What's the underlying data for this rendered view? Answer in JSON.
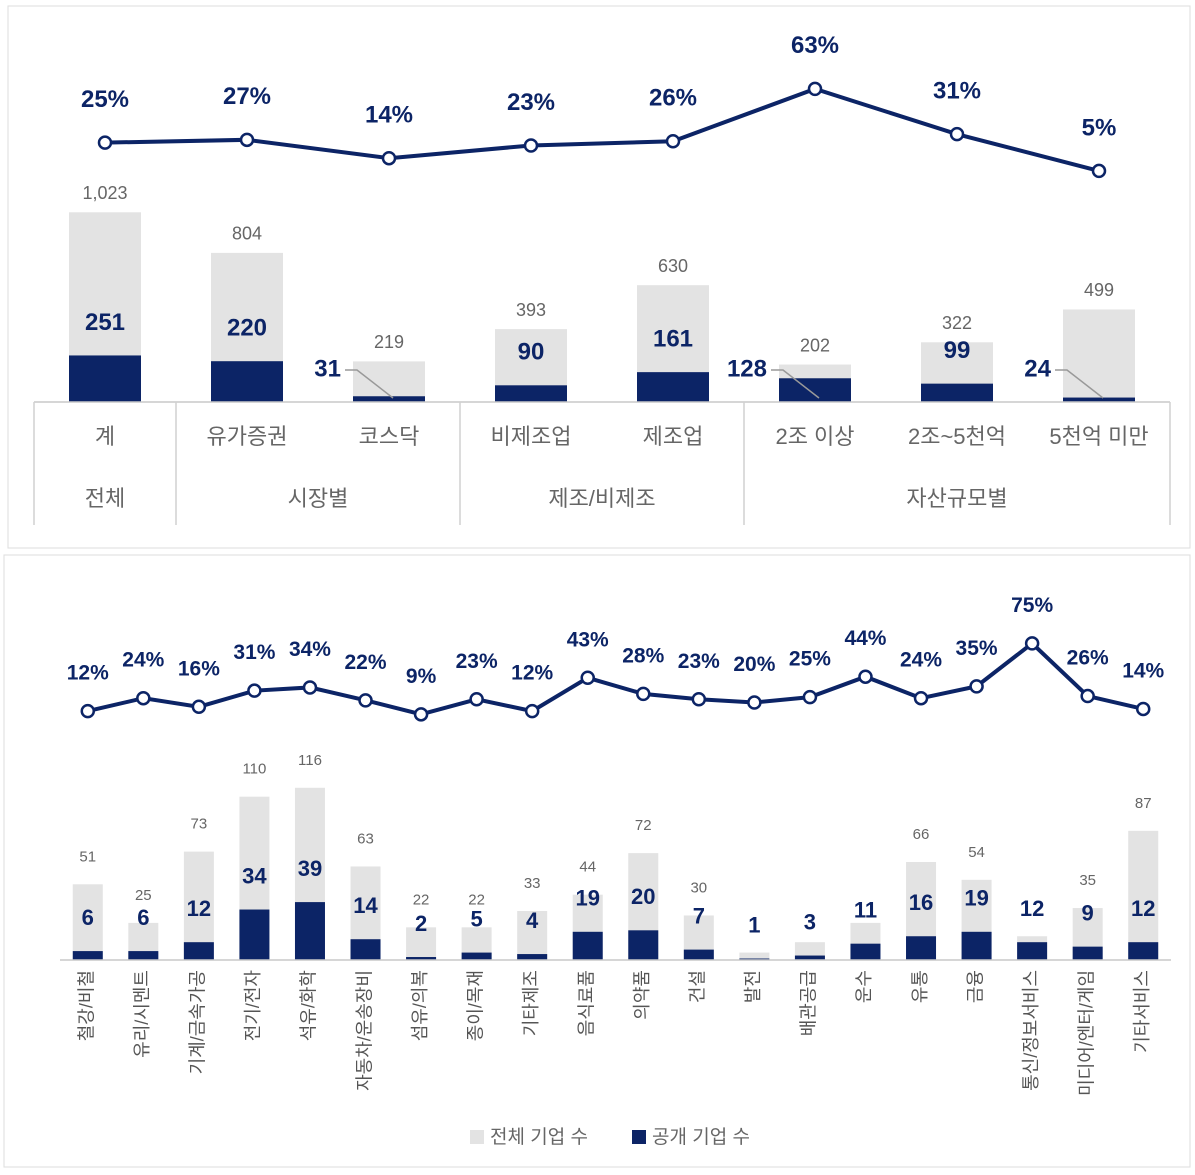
{
  "chart_data": [
    {
      "type": "bar",
      "categories": [
        "계",
        "유가증권",
        "코스닥",
        "비제조업",
        "제조업",
        "2조 이상",
        "2조~5천억",
        "5천억 미만"
      ],
      "groups": [
        {
          "label": "전체",
          "categories": [
            "계"
          ]
        },
        {
          "label": "시장별",
          "categories": [
            "유가증권",
            "코스닥"
          ]
        },
        {
          "label": "제조/비제조",
          "categories": [
            "비제조업",
            "제조업"
          ]
        },
        {
          "label": "자산규모별",
          "categories": [
            "2조 이상",
            "2조~5천억",
            "5천억 미만"
          ]
        }
      ],
      "ylim": [
        0,
        1100
      ],
      "y2lim": [
        0,
        70
      ],
      "series": [
        {
          "color": "#e3e3e3",
          "values": [
            1023,
            804,
            219,
            393,
            630,
            202,
            322,
            499
          ],
          "value_labels": [
            "1,023",
            "804",
            "219",
            "393",
            "630",
            "202",
            "322",
            "499"
          ]
        },
        {
          "color": "#0c2466",
          "values": [
            251,
            220,
            31,
            90,
            161,
            128,
            99,
            24
          ]
        },
        {
          "type": "line",
          "axis": "y2",
          "color": "#0c2466",
          "values": [
            25,
            27,
            14,
            23,
            26,
            63,
            31,
            5
          ],
          "value_labels": [
            "25%",
            "27%",
            "14%",
            "23%",
            "26%",
            "63%",
            "31%",
            "5%"
          ]
        }
      ]
    },
    {
      "type": "bar",
      "categories": [
        "철강/비철",
        "유리/시멘트",
        "기계/금속가공",
        "전기/전자",
        "석유/화학",
        "자동차/운송장비",
        "섬유/의복",
        "종이/목재",
        "기타제조",
        "음식료품",
        "의약품",
        "건설",
        "발전",
        "배관공급",
        "운수",
        "유통",
        "금융",
        "통신/정보서비스",
        "미디어/엔터/게임",
        "기타서비스"
      ],
      "ylim": [
        0,
        130
      ],
      "y2lim": [
        0,
        80
      ],
      "series": [
        {
          "name": "전체 기업 수",
          "color": "#e3e3e3",
          "values": [
            51,
            25,
            73,
            110,
            116,
            63,
            22,
            22,
            33,
            44,
            72,
            30,
            5,
            12,
            25,
            66,
            54,
            16,
            35,
            87
          ],
          "value_labels": [
            "51",
            "25",
            "73",
            "110",
            "116",
            "63",
            "22",
            "22",
            "33",
            "44",
            "72",
            "30",
            null,
            null,
            null,
            "66",
            "54",
            null,
            "35",
            "87"
          ]
        },
        {
          "name": "공개 기업 수",
          "color": "#0c2466",
          "values": [
            6,
            6,
            12,
            34,
            39,
            14,
            2,
            5,
            4,
            19,
            20,
            7,
            1,
            3,
            11,
            16,
            19,
            12,
            9,
            12
          ]
        },
        {
          "type": "line",
          "axis": "y2",
          "color": "#0c2466",
          "values": [
            12,
            24,
            16,
            31,
            34,
            22,
            9,
            23,
            12,
            43,
            28,
            23,
            20,
            25,
            44,
            24,
            35,
            75,
            26,
            14
          ],
          "value_labels": [
            "12%",
            "24%",
            "16%",
            "31%",
            "34%",
            "22%",
            "9%",
            "23%",
            "12%",
            "43%",
            "28%",
            "23%",
            "20%",
            "25%",
            "44%",
            "24%",
            "35%",
            "75%",
            "26%",
            "14%"
          ]
        }
      ]
    }
  ]
}
